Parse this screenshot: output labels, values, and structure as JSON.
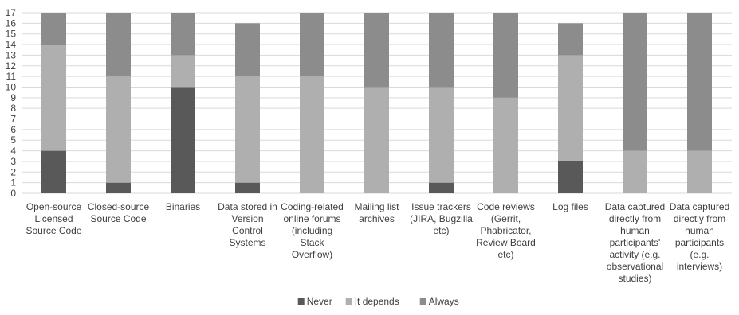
{
  "chart_data": {
    "type": "bar",
    "stacked": true,
    "categories": [
      "Open-source Licensed Source Code",
      "Closed-source Source Code",
      "Binaries",
      "Data stored in Version Control Systems",
      "Coding-related online forums (including Stack Overflow)",
      "Mailing list archives",
      "Issue trackers (JIRA, Bugzilla etc)",
      "Code reviews (Gerrit, Phabricator, Review Board etc)",
      "Log files",
      "Data captured directly from human participants' activity (e.g. observational studies)",
      "Data captured directly from human participants (e.g. interviews)"
    ],
    "category_lines": [
      [
        "Open-source",
        "Licensed",
        "Source Code"
      ],
      [
        "Closed-source",
        "Source Code"
      ],
      [
        "Binaries"
      ],
      [
        "Data stored in",
        "Version",
        "Control",
        "Systems"
      ],
      [
        "Coding-related",
        "online forums",
        "(including",
        "Stack",
        "Overflow)"
      ],
      [
        "Mailing list",
        "archives"
      ],
      [
        "Issue trackers",
        "(JIRA, Bugzilla",
        "etc)"
      ],
      [
        "Code reviews",
        "(Gerrit,",
        "Phabricator,",
        "Review Board",
        "etc)"
      ],
      [
        "Log files"
      ],
      [
        "Data captured",
        "directly from",
        "human",
        "participants'",
        "activity (e.g.",
        "observational",
        "studies)"
      ],
      [
        "Data captured",
        "directly from",
        "human",
        "participants",
        "(e.g.",
        "interviews)"
      ]
    ],
    "series": [
      {
        "name": "Never",
        "color": "#595959",
        "values": [
          4,
          1,
          10,
          1,
          0,
          0,
          1,
          0,
          3,
          0,
          0
        ]
      },
      {
        "name": "It depends",
        "color": "#afafaf",
        "values": [
          10,
          10,
          3,
          10,
          11,
          10,
          9,
          9,
          10,
          4,
          4
        ]
      },
      {
        "name": "Always",
        "color": "#8c8c8c",
        "values": [
          3,
          6,
          4,
          5,
          6,
          7,
          7,
          8,
          3,
          13,
          13
        ]
      }
    ],
    "ylim": [
      0,
      17
    ],
    "yticks": [
      0,
      1,
      2,
      3,
      4,
      5,
      6,
      7,
      8,
      9,
      10,
      11,
      12,
      13,
      14,
      15,
      16,
      17
    ],
    "grid": true,
    "legend_position": "bottom",
    "title": "",
    "xlabel": "",
    "ylabel": ""
  }
}
